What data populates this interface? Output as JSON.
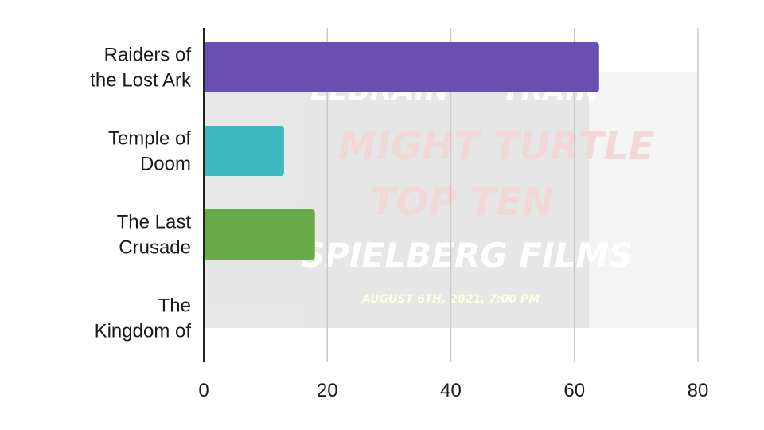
{
  "chart_data": {
    "type": "bar",
    "orientation": "horizontal",
    "title": "",
    "xlabel": "",
    "ylabel": "",
    "categories": [
      [
        "Raiders of",
        "the Lost Ark"
      ],
      [
        "Temple of",
        "Doom"
      ],
      [
        "The Last",
        "Crusade"
      ],
      [
        "The",
        "Kingdom of"
      ]
    ],
    "values": [
      64,
      13,
      18,
      0
    ],
    "colors": [
      "#6a4fb3",
      "#3fb8c2",
      "#69aa48",
      "#cccccc"
    ],
    "xlim": [
      0,
      80
    ],
    "x_ticks": [
      0,
      20,
      40,
      60,
      80
    ],
    "grid": "vertical",
    "legend": "none"
  },
  "background_image": {
    "top_text": [
      "LEBRAIN",
      "TRAIN"
    ],
    "headline_lines": [
      "MIGHT TURTLE",
      "TOP TEN"
    ],
    "subtitle": "SPIELBERG FILMS",
    "date_line": "AUGUST 6TH, 2021, 7:00 PM"
  }
}
